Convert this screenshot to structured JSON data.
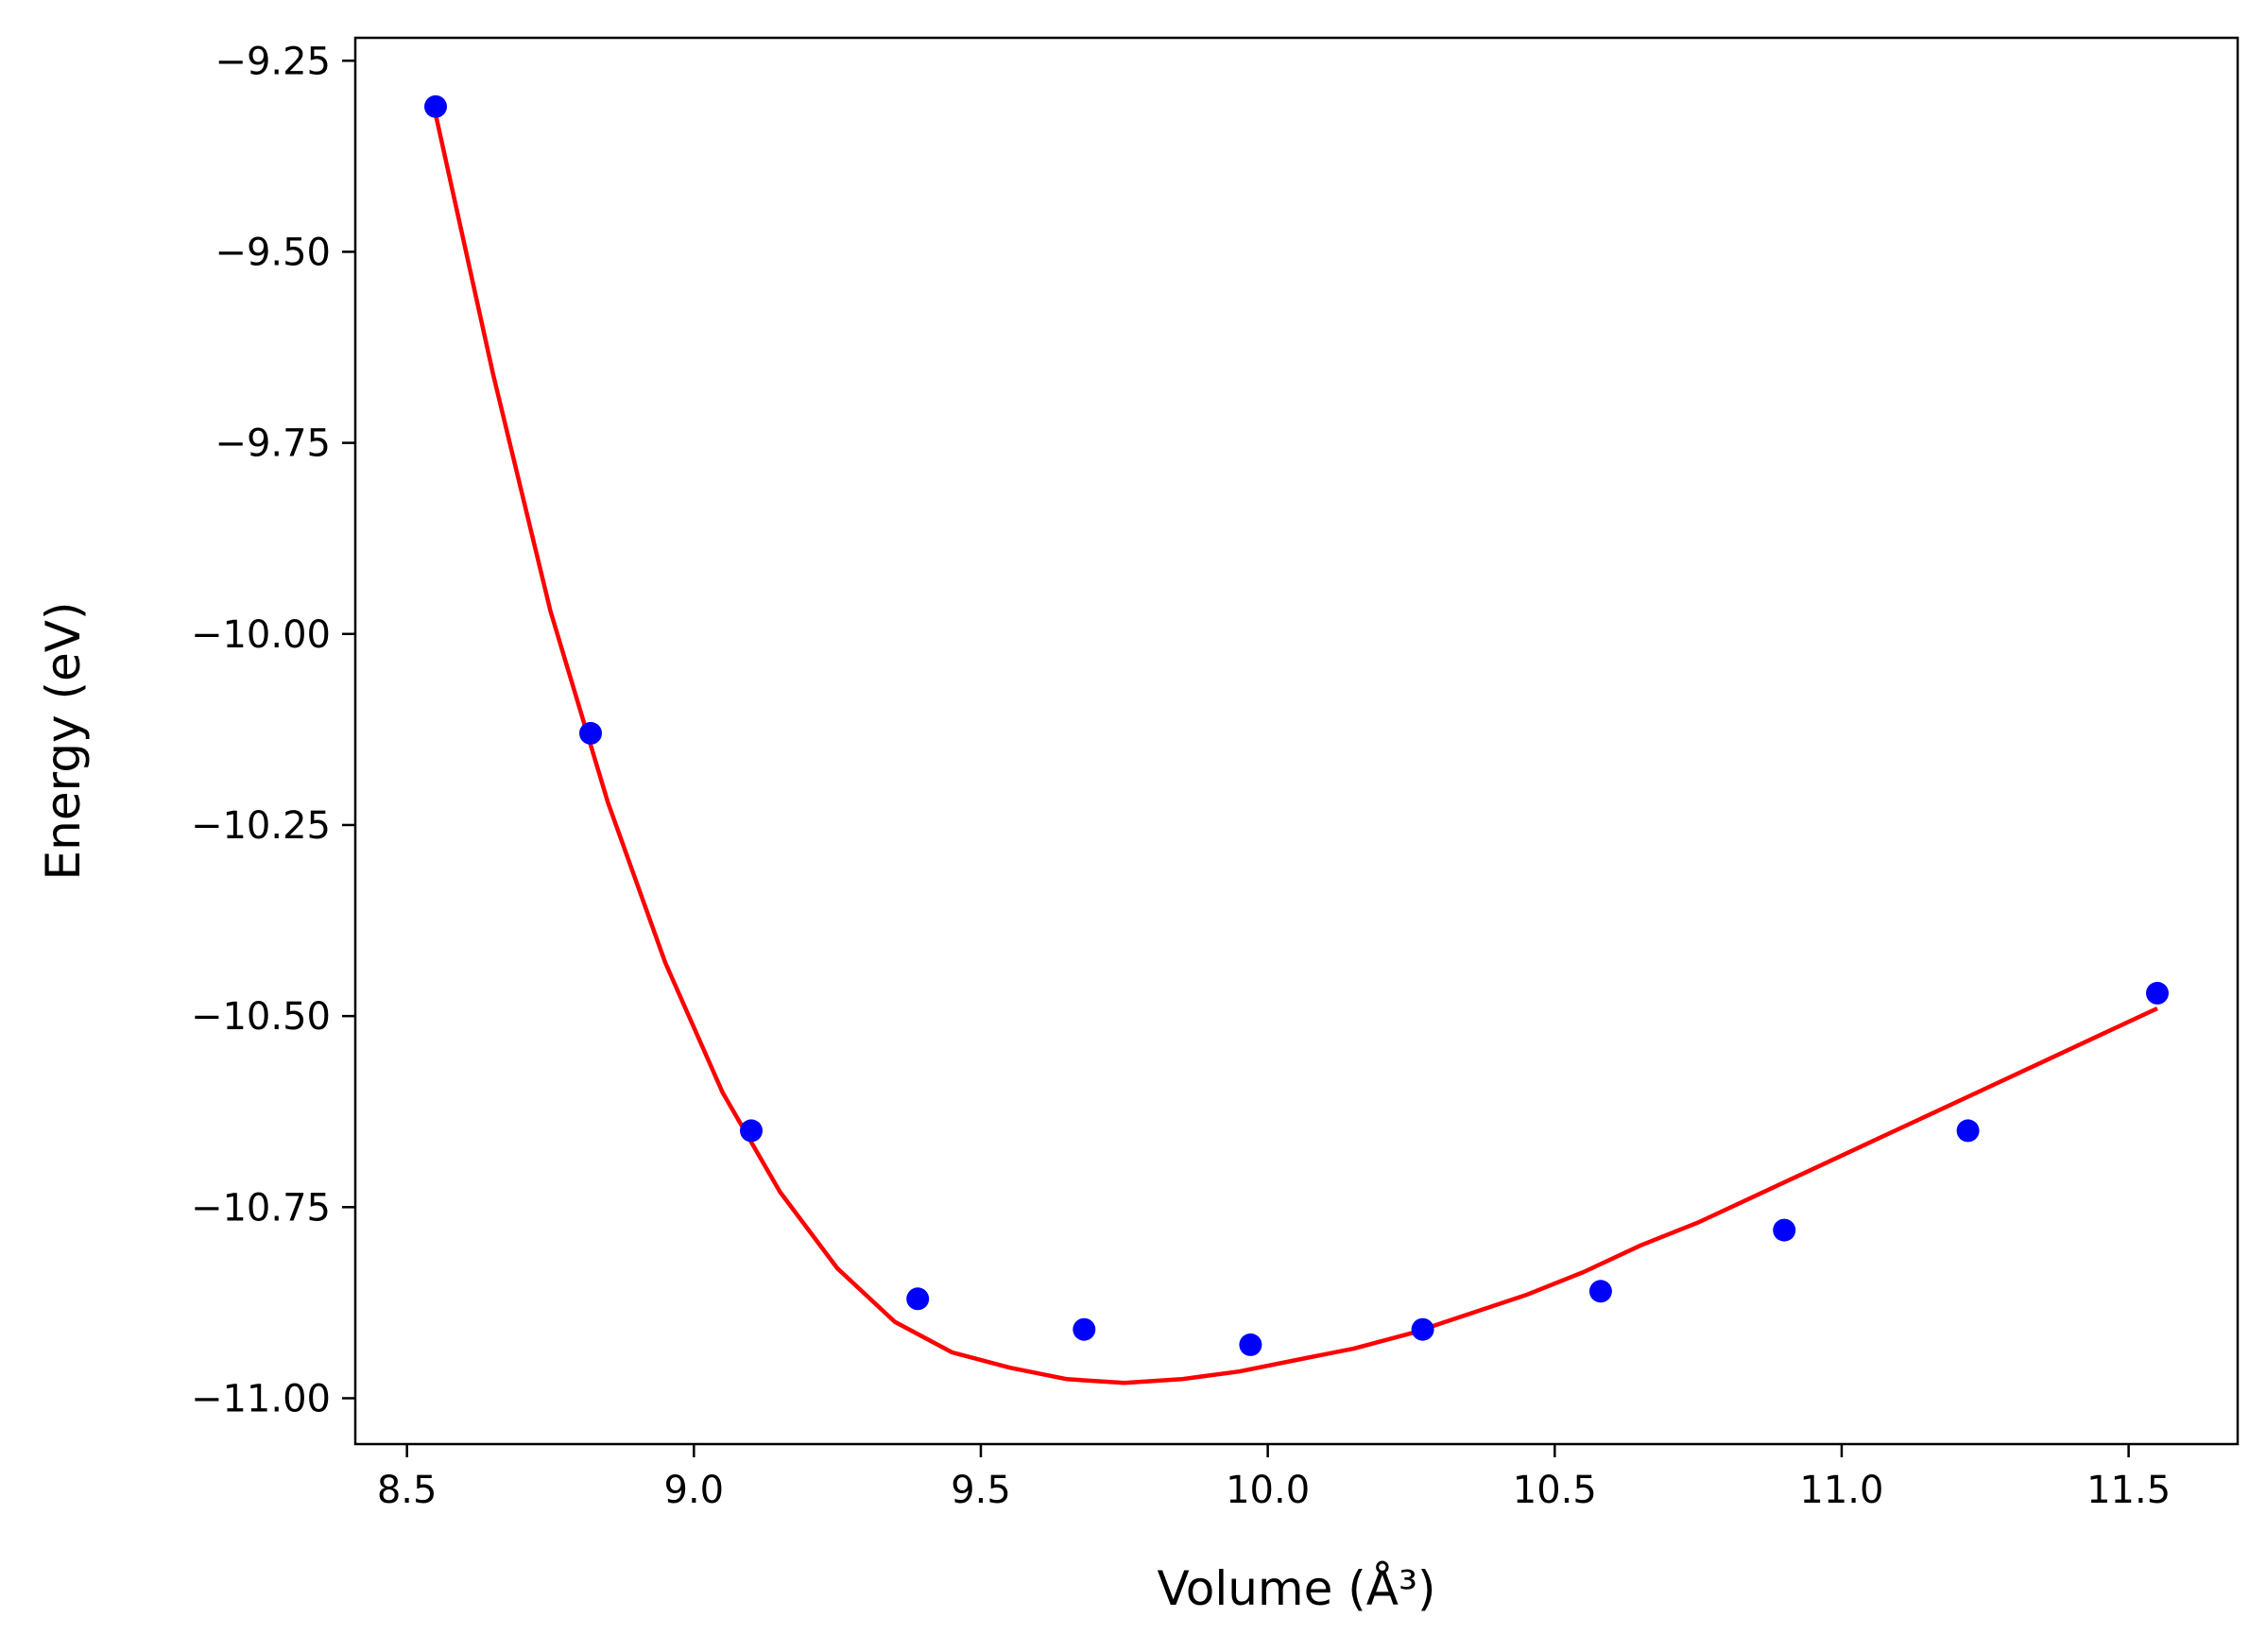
{
  "chart_data": {
    "type": "scatter",
    "title": "",
    "xlabel": "Volume (Å³)",
    "ylabel": "Energy (eV)",
    "xlim": [
      8.41,
      11.69
    ],
    "ylim": [
      -11.06,
      -9.22
    ],
    "grid": false,
    "legend": "none",
    "x_ticks": [
      8.5,
      9.0,
      9.5,
      10.0,
      10.5,
      11.0,
      11.5
    ],
    "x_tick_labels": [
      "8.5",
      "9.0",
      "9.5",
      "10.0",
      "10.5",
      "11.0",
      "11.5"
    ],
    "y_ticks": [
      -9.25,
      -9.5,
      -9.75,
      -10.0,
      -10.25,
      -10.5,
      -10.75,
      -11.0
    ],
    "y_tick_labels": [
      "−9.25",
      "−9.50",
      "−9.75",
      "−10.00",
      "−10.25",
      "−10.50",
      "−10.75",
      "−11.00"
    ],
    "series": [
      {
        "kind": "points",
        "color": "#0000ff",
        "x": [
          8.55,
          8.82,
          9.1,
          9.39,
          9.68,
          9.97,
          10.27,
          10.58,
          10.9,
          11.22,
          11.55
        ],
        "y": [
          -9.31,
          -10.13,
          -10.65,
          -10.87,
          -10.91,
          -10.93,
          -10.91,
          -10.86,
          -10.78,
          -10.65,
          -10.47
        ]
      },
      {
        "kind": "fit-line",
        "color": "#ff0000",
        "x": [
          8.55,
          8.65,
          8.75,
          8.85,
          8.95,
          9.05,
          9.15,
          9.25,
          9.35,
          9.45,
          9.55,
          9.65,
          9.75,
          9.85,
          9.95,
          10.05,
          10.15,
          10.25,
          10.35,
          10.45,
          10.55,
          10.65,
          10.75,
          10.85,
          10.95,
          11.05,
          11.15,
          11.25,
          11.35,
          11.45,
          11.55
        ],
        "y": [
          -9.32,
          -9.66,
          -9.97,
          -10.22,
          -10.43,
          -10.6,
          -10.73,
          -10.83,
          -10.9,
          -10.94,
          -10.96,
          -10.975,
          -10.98,
          -10.975,
          -10.965,
          -10.95,
          -10.935,
          -10.915,
          -10.89,
          -10.865,
          -10.835,
          -10.8,
          -10.77,
          -10.735,
          -10.7,
          -10.665,
          -10.63,
          -10.595,
          -10.56,
          -10.525,
          -10.49
        ]
      }
    ]
  }
}
